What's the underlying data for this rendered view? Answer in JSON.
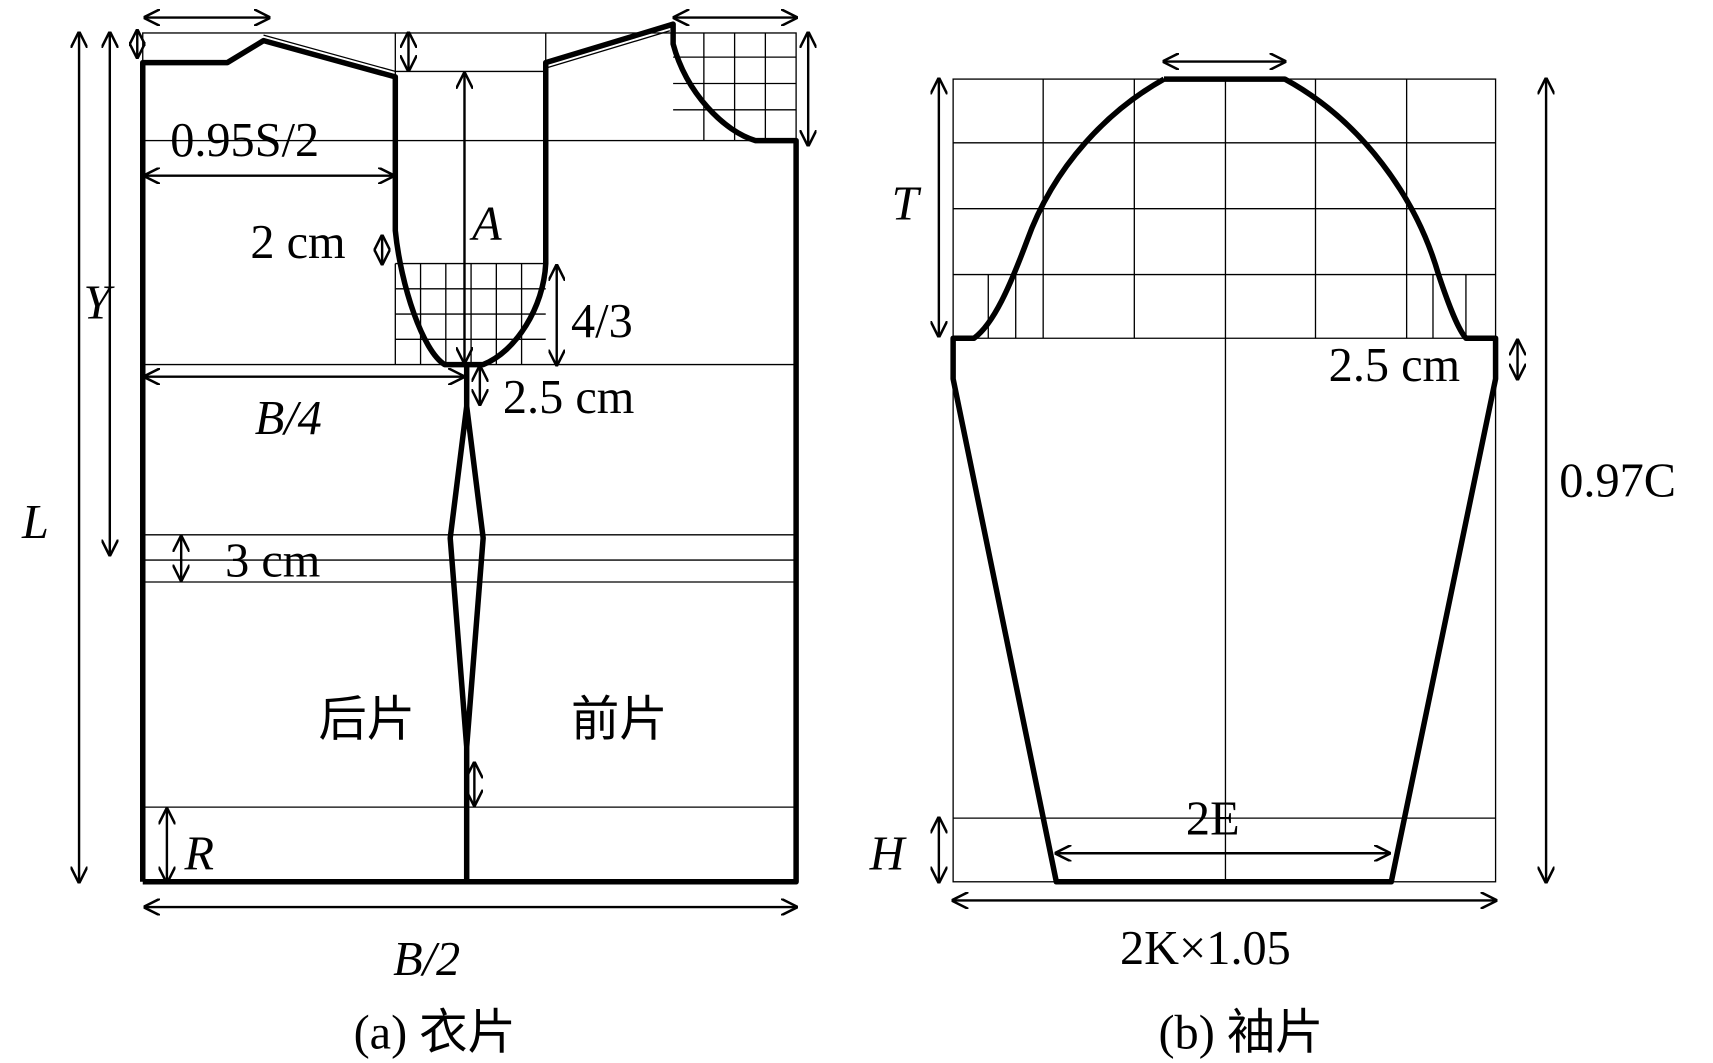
{
  "panel_a": {
    "labels": {
      "shoulder": "0.95S/2",
      "two_cm": "2 cm",
      "a": "A",
      "four_thirds": "4/3",
      "b4": "B/4",
      "two_five_cm": "2.5 cm",
      "y": "Y",
      "l": "L",
      "three_cm": "3 cm",
      "back": "后片",
      "front": "前片",
      "r": "R",
      "b2": "B/2"
    },
    "caption": "(a) 衣片"
  },
  "panel_b": {
    "labels": {
      "t": "T",
      "two_five_cm": "2.5 cm",
      "c": "0.97C",
      "e": "2E",
      "h": "H",
      "k": "2K×1.05"
    },
    "caption": "(b) 袖片"
  }
}
